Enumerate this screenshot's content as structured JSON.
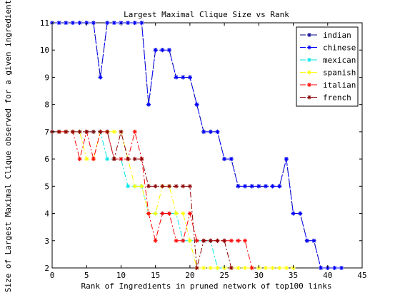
{
  "chart_data": {
    "type": "line",
    "title": "Largest Maximal Clique Size vs Rank",
    "xlabel": "Rank of Ingredients in pruned network of top100 links",
    "ylabel": "Size of Largest Maximal Clique observed for a given ingredient",
    "xlim": [
      0,
      45
    ],
    "ylim": [
      2,
      11
    ],
    "xticks": [
      0,
      5,
      10,
      15,
      20,
      25,
      30,
      35,
      40,
      45
    ],
    "yticks": [
      2,
      3,
      4,
      5,
      6,
      7,
      8,
      9,
      10,
      11
    ],
    "grid": false,
    "legend_position": "top-right",
    "series": [
      {
        "name": "indian",
        "color": "#00008b",
        "x": [
          1,
          2,
          3,
          4,
          5,
          6,
          7,
          8,
          9,
          10,
          11,
          12,
          13,
          14,
          15,
          16,
          17,
          18,
          19,
          20,
          21,
          22,
          23,
          24,
          25,
          26,
          27,
          28,
          29,
          30,
          31,
          32,
          33,
          34,
          35,
          36,
          37,
          38,
          39,
          40,
          41,
          42
        ],
        "y": [
          11,
          11,
          11,
          11,
          11,
          11,
          9,
          11,
          11,
          11,
          11,
          11,
          11,
          8,
          10,
          10,
          10,
          9,
          9,
          9,
          8,
          7,
          7,
          7,
          6,
          6,
          5,
          5,
          5,
          5,
          5,
          5,
          5,
          6,
          4,
          4,
          3,
          3,
          2,
          2,
          2,
          2
        ]
      },
      {
        "name": "chinese",
        "color": "#0000ff",
        "x": [
          0,
          1,
          2,
          3,
          4,
          5,
          6,
          7,
          8,
          9,
          10,
          11,
          12,
          13,
          14,
          15,
          16,
          17,
          18,
          19,
          20,
          21,
          22,
          23,
          24,
          25,
          26,
          27,
          28,
          29,
          30,
          31,
          32,
          33,
          34,
          35,
          36,
          37,
          38,
          39,
          40,
          41,
          42
        ],
        "y": [
          11,
          11,
          11,
          11,
          11,
          11,
          11,
          9,
          11,
          11,
          11,
          11,
          11,
          11,
          8,
          10,
          10,
          10,
          9,
          9,
          9,
          8,
          7,
          7,
          7,
          6,
          6,
          5,
          5,
          5,
          5,
          5,
          5,
          5,
          6,
          4,
          4,
          3,
          3,
          2,
          2,
          2,
          2
        ]
      },
      {
        "name": "mexican",
        "color": "#00e5e5",
        "x": [
          0,
          1,
          2,
          3,
          4,
          5,
          6,
          7,
          8,
          9,
          10,
          11,
          12,
          13,
          14,
          15,
          16,
          17,
          18,
          19,
          20,
          21,
          22,
          23,
          24,
          25
        ],
        "y": [
          7,
          7,
          7,
          7,
          7,
          7,
          7,
          7,
          6,
          6,
          6,
          5,
          5,
          5,
          4,
          4,
          4,
          4,
          4,
          3,
          3,
          3,
          3,
          3,
          2,
          2
        ]
      },
      {
        "name": "spanish",
        "color": "#ffff00",
        "x": [
          1,
          2,
          3,
          4,
          5,
          6,
          7,
          8,
          9,
          10,
          11,
          12,
          13,
          14,
          15,
          16,
          17,
          18,
          19,
          20,
          21,
          22,
          23,
          24,
          25,
          26,
          27,
          28,
          29,
          30,
          31,
          32,
          33,
          34,
          35
        ],
        "y": [
          7,
          7,
          7,
          7,
          6,
          6,
          7,
          7,
          7,
          7,
          6,
          5,
          5,
          4,
          4,
          5,
          5,
          4,
          4,
          3,
          2,
          2,
          2,
          2,
          2,
          2,
          2,
          2,
          2,
          2,
          2,
          2,
          2,
          2,
          2
        ]
      },
      {
        "name": "italian",
        "color": "#ff0000",
        "x": [
          1,
          2,
          3,
          4,
          5,
          6,
          7,
          8,
          9,
          10,
          11,
          12,
          13,
          14,
          15,
          16,
          17,
          18,
          19,
          20,
          21,
          22,
          23,
          24,
          25,
          26,
          27,
          28,
          29
        ],
        "y": [
          7,
          7,
          7,
          6,
          7,
          6,
          7,
          7,
          6,
          6,
          6,
          7,
          6,
          4,
          3,
          4,
          4,
          3,
          3,
          4,
          3,
          3,
          3,
          3,
          3,
          3,
          3,
          3,
          2
        ]
      },
      {
        "name": "french",
        "color": "#8b0000",
        "x": [
          0,
          1,
          2,
          3,
          4,
          5,
          6,
          7,
          8,
          9,
          10,
          11,
          12,
          13,
          14,
          15,
          16,
          17,
          18,
          19,
          20,
          21,
          22,
          23,
          24,
          25,
          26
        ],
        "y": [
          7,
          7,
          7,
          7,
          7,
          7,
          7,
          7,
          7,
          6,
          7,
          6,
          6,
          6,
          5,
          5,
          5,
          5,
          5,
          5,
          5,
          2,
          3,
          3,
          3,
          3,
          2
        ]
      }
    ]
  }
}
